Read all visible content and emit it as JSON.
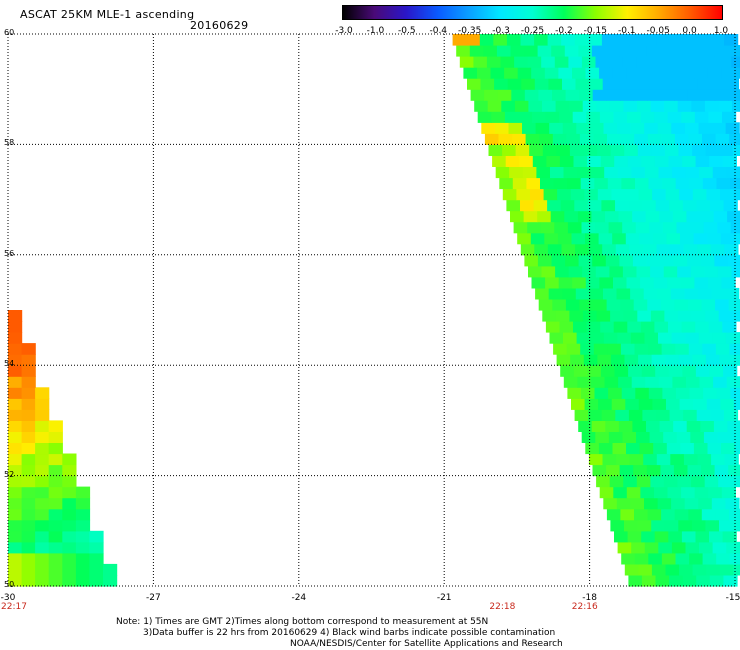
{
  "header": {
    "title": "ASCAT 25KM MLE-1 ascending",
    "date": "20160629"
  },
  "colorbar": {
    "labels": [
      "-3.0",
      "-1.0",
      "-0.5",
      "-0.4",
      "-0.35",
      "-0.3",
      "-0.25",
      "-0.2",
      "-0.15",
      "-0.1",
      "-0.05",
      "0.0",
      "1.0"
    ],
    "colors": [
      "#000000",
      "#4a0a78",
      "#2a16c8",
      "#0a5aff",
      "#0aa0ff",
      "#00e8ff",
      "#00ffd2",
      "#00ff5a",
      "#8cff00",
      "#fff000",
      "#ffaa00",
      "#ff5a00",
      "#ff0000"
    ]
  },
  "axes": {
    "lat_labels": [
      "60",
      "58",
      "56",
      "54",
      "52",
      "50"
    ],
    "lon_labels": [
      "-30",
      "-27",
      "-24",
      "-21",
      "-18",
      "-15"
    ],
    "lat_range": [
      50,
      60
    ],
    "lon_range": [
      -30,
      -15
    ],
    "grid": true
  },
  "times": [
    {
      "label": "22:17",
      "lon": -30
    },
    {
      "label": "22:18",
      "lon": -19.8
    },
    {
      "label": "22:16",
      "lon": -18.1
    }
  ],
  "notes": {
    "line1": "Note: 1) Times are GMT 2)Times along bottom correspond to measurement at 55N",
    "line2": "3)Data buffer is 22 hrs from 20160629 4) Black wind barbs indicate possible contamination",
    "line3": "NOAA/NESDIS/Center for Satellite Applications and Research"
  },
  "swaths": [
    {
      "name": "west",
      "edge_lon_at_lat50": -29.85,
      "edge_lon_at_lat55": -30.0
    },
    {
      "name": "east",
      "edge_lon_at_lat60": -20.9,
      "edge_lon_at_lat50": -17.2
    }
  ]
}
